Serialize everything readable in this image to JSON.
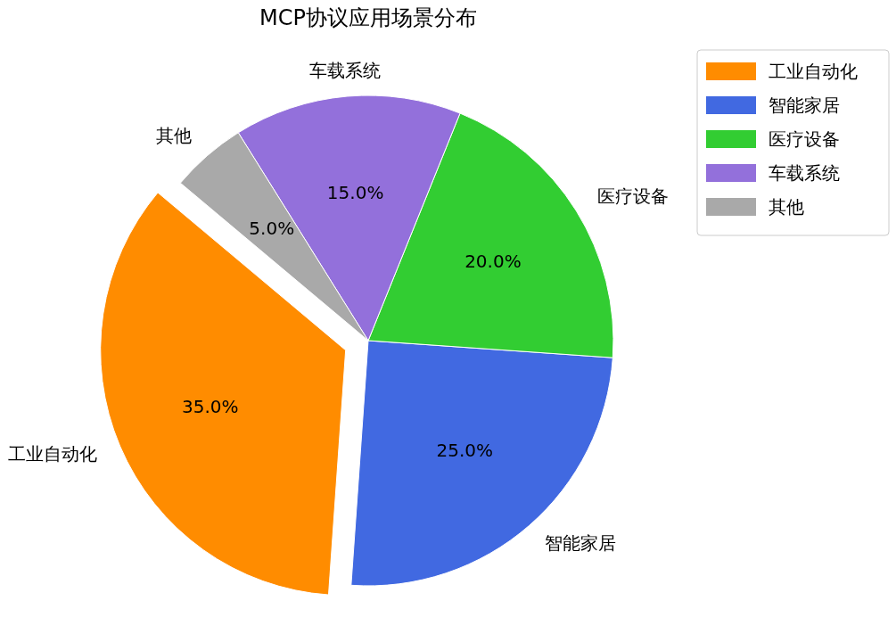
{
  "chart_data": {
    "type": "pie",
    "title": "MCP协议应用场景分布",
    "categories": [
      "工业自动化",
      "智能家居",
      "医疗设备",
      "车载系统",
      "其他"
    ],
    "values": [
      35,
      25,
      20,
      15,
      5
    ],
    "colors": [
      "#ff8c00",
      "#4169e1",
      "#32cd32",
      "#9370db",
      "#a9a9a9"
    ],
    "value_labels": [
      "35.0%",
      "25.0%",
      "20.0%",
      "15.0%",
      "5.0%"
    ],
    "legend": "top right"
  }
}
